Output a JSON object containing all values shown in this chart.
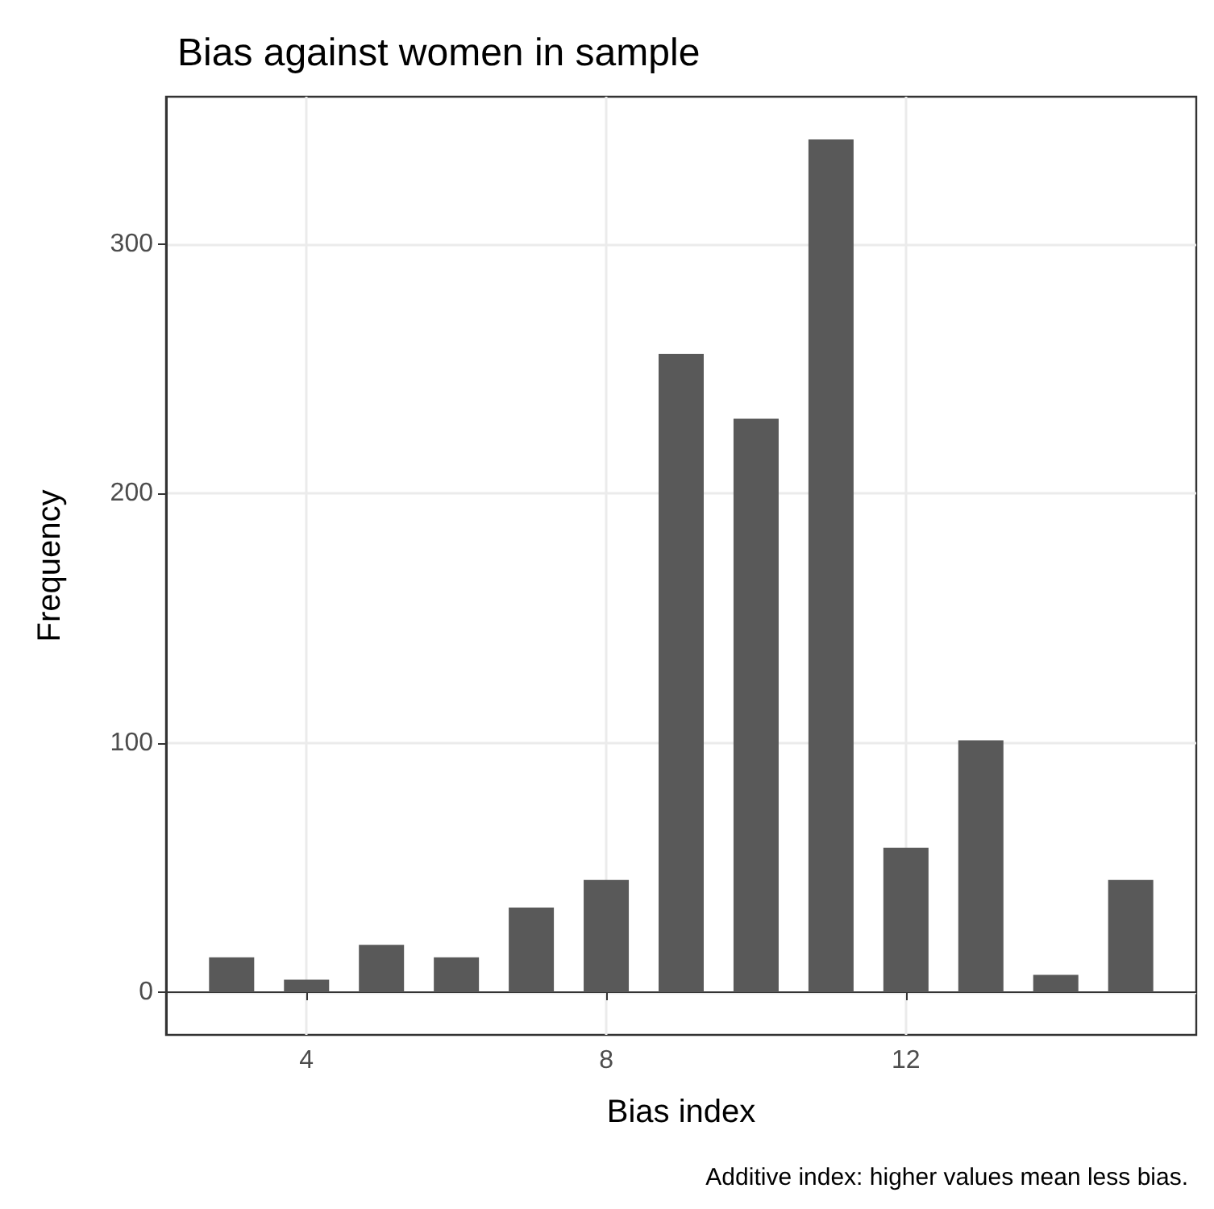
{
  "chart_data": {
    "type": "bar",
    "title": "Bias against women in sample",
    "xlabel": "Bias index",
    "ylabel": "Frequency",
    "annotations": [
      "Additive index: higher values mean less bias."
    ],
    "x": [
      3,
      4,
      5,
      6,
      7,
      8,
      9,
      10,
      11,
      12,
      13,
      14,
      15
    ],
    "values": [
      14,
      5,
      19,
      14,
      34,
      45,
      256,
      230,
      342,
      58,
      101,
      7,
      45
    ],
    "color": "#595959",
    "xlim": [
      2.125,
      15.875
    ],
    "xticks": [
      4,
      8,
      12
    ],
    "ylim": [
      -17.1,
      359.1
    ],
    "yticks": [
      0,
      100,
      200,
      300
    ],
    "grid": true
  }
}
